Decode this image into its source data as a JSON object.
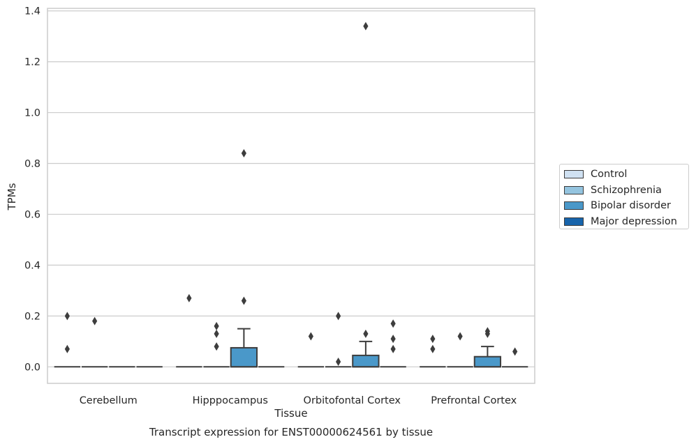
{
  "chart_data": {
    "type": "box",
    "title": "Transcript expression for ENST00000624561 by tissue",
    "xlabel": "Tissue",
    "ylabel": "TPMs",
    "categories": [
      "Cerebellum",
      "Hipppocampus",
      "Orbitofontal Cortex",
      "Prefrontal Cortex"
    ],
    "ylim": [
      -0.065,
      1.41
    ],
    "yticks": [
      0.0,
      0.2,
      0.4,
      0.6,
      0.8,
      1.0,
      1.2,
      1.4
    ],
    "ytick_labels": [
      "0.0",
      "0.2",
      "0.4",
      "0.6",
      "0.8",
      "1.0",
      "1.2",
      "1.4"
    ],
    "grid": "horizontal",
    "legend_position": "right",
    "series": [
      {
        "name": "Control",
        "color": "#d0e1f2",
        "boxes": [
          {
            "category": "Cerebellum",
            "q1": 0,
            "median": 0,
            "q3": 0,
            "whisker_low": 0,
            "whisker_high": 0,
            "outliers": [
              0.2,
              0.07
            ]
          },
          {
            "category": "Hipppocampus",
            "q1": 0,
            "median": 0,
            "q3": 0,
            "whisker_low": 0,
            "whisker_high": 0,
            "outliers": [
              0.27
            ]
          },
          {
            "category": "Orbitofontal Cortex",
            "q1": 0,
            "median": 0,
            "q3": 0,
            "whisker_low": 0,
            "whisker_high": 0,
            "outliers": [
              0.12
            ]
          },
          {
            "category": "Prefrontal Cortex",
            "q1": 0,
            "median": 0,
            "q3": 0,
            "whisker_low": 0,
            "whisker_high": 0,
            "outliers": [
              0.11,
              0.07
            ]
          }
        ]
      },
      {
        "name": "Schizophrenia",
        "color": "#94c4df",
        "boxes": [
          {
            "category": "Cerebellum",
            "q1": 0,
            "median": 0,
            "q3": 0,
            "whisker_low": 0,
            "whisker_high": 0,
            "outliers": [
              0.18
            ]
          },
          {
            "category": "Hipppocampus",
            "q1": 0,
            "median": 0,
            "q3": 0,
            "whisker_low": 0,
            "whisker_high": 0,
            "outliers": [
              0.16,
              0.13,
              0.08
            ]
          },
          {
            "category": "Orbitofontal Cortex",
            "q1": 0,
            "median": 0,
            "q3": 0,
            "whisker_low": 0,
            "whisker_high": 0,
            "outliers": [
              0.2,
              0.02
            ]
          },
          {
            "category": "Prefrontal Cortex",
            "q1": 0,
            "median": 0,
            "q3": 0,
            "whisker_low": 0,
            "whisker_high": 0,
            "outliers": [
              0.12
            ]
          }
        ]
      },
      {
        "name": "Bipolar disorder",
        "color": "#4a98c9",
        "boxes": [
          {
            "category": "Cerebellum",
            "q1": 0,
            "median": 0,
            "q3": 0,
            "whisker_low": 0,
            "whisker_high": 0,
            "outliers": []
          },
          {
            "category": "Hipppocampus",
            "q1": 0,
            "median": 0,
            "q3": 0.075,
            "whisker_low": 0,
            "whisker_high": 0.15,
            "outliers": [
              0.84,
              0.26
            ]
          },
          {
            "category": "Orbitofontal Cortex",
            "q1": 0,
            "median": 0,
            "q3": 0.045,
            "whisker_low": 0,
            "whisker_high": 0.1,
            "outliers": [
              1.34,
              0.13
            ]
          },
          {
            "category": "Prefrontal Cortex",
            "q1": 0,
            "median": 0,
            "q3": 0.04,
            "whisker_low": 0,
            "whisker_high": 0.08,
            "outliers": [
              0.14,
              0.13
            ]
          }
        ]
      },
      {
        "name": "Major depression",
        "color": "#1764ab",
        "boxes": [
          {
            "category": "Cerebellum",
            "q1": 0,
            "median": 0,
            "q3": 0,
            "whisker_low": 0,
            "whisker_high": 0,
            "outliers": []
          },
          {
            "category": "Hipppocampus",
            "q1": 0,
            "median": 0,
            "q3": 0,
            "whisker_low": 0,
            "whisker_high": 0,
            "outliers": []
          },
          {
            "category": "Orbitofontal Cortex",
            "q1": 0,
            "median": 0,
            "q3": 0,
            "whisker_low": 0,
            "whisker_high": 0,
            "outliers": [
              0.17,
              0.11,
              0.07
            ]
          },
          {
            "category": "Prefrontal Cortex",
            "q1": 0,
            "median": 0,
            "q3": 0,
            "whisker_low": 0,
            "whisker_high": 0,
            "outliers": [
              0.06
            ]
          }
        ]
      }
    ]
  }
}
